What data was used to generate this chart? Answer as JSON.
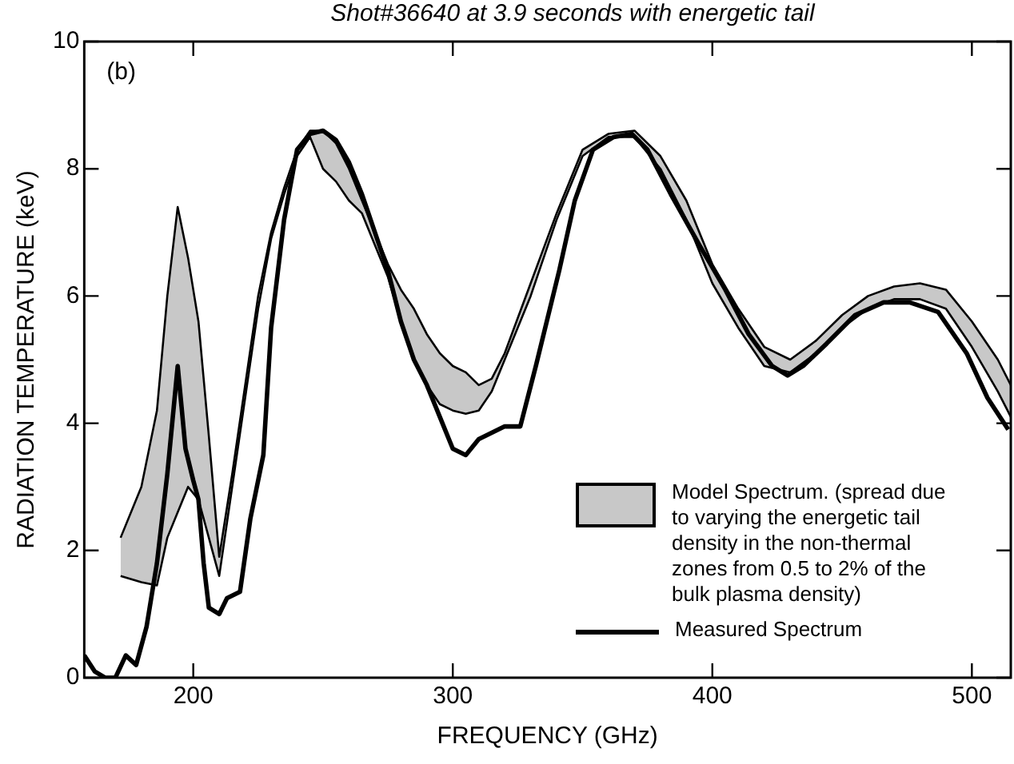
{
  "chart_data": {
    "type": "line",
    "title": "Shot#36640 at 3.9 seconds with energetic tail",
    "xlabel": "FREQUENCY (GHz)",
    "ylabel": "RADIATION TEMPERATURE (keV)",
    "annotations": [
      "(b)"
    ],
    "xlim": [
      158,
      515
    ],
    "xticks": [
      200,
      300,
      400,
      500
    ],
    "ylim": [
      0,
      10
    ],
    "yticks": [
      0,
      2,
      4,
      6,
      8,
      10
    ],
    "grid": false,
    "legend": "bottom right",
    "marker": "none",
    "line_style": "solid",
    "series": [
      {
        "name": "Model Spectrum. (spread due to varying the energetic tail density in the non-thermal zones from 0.5 to 2% of the bulk plasma density)",
        "color": "#c8c8c8",
        "values": [
          null,
          null,
          null,
          null,
          null,
          null,
          null,
          null,
          null,
          null,
          null,
          null,
          null,
          null,
          null,
          null,
          null,
          null,
          null,
          null,
          null,
          null,
          null,
          null,
          null,
          null,
          null,
          null,
          null,
          null,
          null,
          null,
          null,
          null,
          null,
          null,
          null,
          null,
          null,
          null,
          null,
          null,
          null,
          null,
          null,
          null,
          null,
          null,
          null,
          null,
          null
        ],
        "x": [
          172,
          180,
          186,
          190,
          194,
          198,
          202,
          206,
          210,
          215,
          220,
          225,
          230,
          235,
          240,
          245,
          250,
          255,
          260,
          265,
          270,
          275,
          280,
          285,
          290,
          295,
          300,
          305,
          310,
          315,
          320,
          330,
          340,
          350,
          360,
          370,
          380,
          390,
          400,
          410,
          420,
          430,
          440,
          450,
          460,
          470,
          480,
          490,
          500,
          510,
          515
        ],
        "upper": [
          2.2,
          3.0,
          4.2,
          6.0,
          7.4,
          6.6,
          5.6,
          3.8,
          1.9,
          3.2,
          4.6,
          6.0,
          7.0,
          7.7,
          8.3,
          8.6,
          8.6,
          8.4,
          8.0,
          7.5,
          7.0,
          6.5,
          6.1,
          5.8,
          5.4,
          5.1,
          4.9,
          4.8,
          4.6,
          4.7,
          5.1,
          6.2,
          7.3,
          8.3,
          8.55,
          8.6,
          8.2,
          7.5,
          6.5,
          5.8,
          5.2,
          5.0,
          5.3,
          5.7,
          6.0,
          6.15,
          6.2,
          6.1,
          5.6,
          5.0,
          4.6
        ],
        "lower": [
          1.6,
          1.5,
          1.45,
          2.2,
          2.6,
          3.0,
          2.8,
          2.2,
          1.6,
          3.0,
          4.4,
          5.8,
          6.9,
          7.6,
          8.2,
          8.5,
          8.0,
          7.8,
          7.5,
          7.3,
          6.8,
          6.3,
          5.6,
          5.0,
          4.6,
          4.3,
          4.2,
          4.15,
          4.2,
          4.5,
          5.0,
          6.0,
          7.2,
          8.2,
          8.5,
          8.5,
          8.0,
          7.2,
          6.2,
          5.5,
          4.9,
          4.8,
          5.1,
          5.5,
          5.8,
          5.95,
          5.95,
          5.8,
          5.2,
          4.5,
          4.1
        ]
      },
      {
        "color": "#000000",
        "x": [
          172,
          180,
          186,
          190,
          194,
          198,
          202,
          206,
          210,
          215,
          220,
          225,
          230,
          235,
          240,
          245,
          250,
          255,
          260,
          265,
          270,
          275,
          280,
          285,
          290,
          295,
          300,
          305,
          310,
          315,
          320,
          330,
          340,
          350,
          360,
          370,
          380,
          390,
          400,
          410,
          420,
          430,
          440,
          450,
          460,
          470,
          480,
          490,
          500,
          510,
          515
        ],
        "values": [
          2.2,
          3.0,
          4.2,
          6.0,
          7.4,
          6.6,
          5.6,
          3.8,
          1.9,
          3.2,
          4.6,
          6.0,
          7.0,
          7.7,
          8.3,
          8.6,
          8.6,
          8.4,
          8.0,
          7.5,
          7.0,
          6.5,
          6.1,
          5.8,
          5.4,
          5.1,
          4.9,
          4.8,
          4.6,
          4.7,
          5.1,
          6.2,
          7.3,
          8.3,
          8.55,
          8.6,
          8.2,
          7.5,
          6.5,
          5.8,
          5.2,
          5.0,
          5.3,
          5.7,
          6.0,
          6.15,
          6.2,
          6.1,
          5.6,
          5.0,
          4.6
        ]
      },
      {
        "color": "#000000",
        "x": [
          172,
          180,
          186,
          190,
          194,
          198,
          202,
          206,
          210,
          215,
          220,
          225,
          230,
          235,
          240,
          245,
          250,
          255,
          260,
          265,
          270,
          275,
          280,
          285,
          290,
          295,
          300,
          305,
          310,
          315,
          320,
          330,
          340,
          350,
          360,
          370,
          380,
          390,
          400,
          410,
          420,
          430,
          440,
          450,
          460,
          470,
          480,
          490,
          500,
          510,
          515
        ],
        "values": [
          1.6,
          1.5,
          1.45,
          2.2,
          2.6,
          3.0,
          2.8,
          2.2,
          1.6,
          3.0,
          4.4,
          5.8,
          6.9,
          7.6,
          8.2,
          8.5,
          8.0,
          7.8,
          7.5,
          7.3,
          6.8,
          6.3,
          5.6,
          5.0,
          4.6,
          4.3,
          4.2,
          4.15,
          4.2,
          4.5,
          5.0,
          6.0,
          7.2,
          8.2,
          8.5,
          8.5,
          8.0,
          7.2,
          6.2,
          5.5,
          4.9,
          4.8,
          5.1,
          5.5,
          5.8,
          5.95,
          5.95,
          5.8,
          5.2,
          4.5,
          4.1
        ]
      },
      {
        "name": "Measured Spectrum",
        "color": "#000000",
        "x": [
          158,
          162,
          166,
          170,
          174,
          178,
          182,
          186,
          190,
          194,
          197,
          200,
          202,
          204,
          206,
          210,
          213,
          218,
          222,
          227,
          230,
          235,
          240,
          245,
          250,
          255,
          260,
          265,
          270,
          275,
          280,
          285,
          290,
          295,
          300,
          305,
          310,
          315,
          320,
          326,
          332,
          341,
          347,
          354,
          362,
          369,
          375,
          384,
          395,
          405,
          414,
          423,
          429,
          435,
          444,
          455,
          466,
          476,
          487,
          498,
          506,
          514
        ],
        "values": [
          0.35,
          0.1,
          0,
          0,
          0.35,
          0.2,
          0.8,
          1.8,
          3.2,
          4.9,
          3.6,
          3.1,
          2.8,
          1.8,
          1.1,
          1.0,
          1.25,
          1.35,
          2.5,
          3.5,
          5.5,
          7.2,
          8.3,
          8.55,
          8.6,
          8.45,
          8.1,
          7.6,
          7.0,
          6.4,
          5.6,
          5.0,
          4.6,
          4.1,
          3.6,
          3.5,
          3.75,
          3.85,
          3.95,
          3.95,
          4.9,
          6.4,
          7.5,
          8.3,
          8.5,
          8.55,
          8.3,
          7.6,
          6.8,
          6.1,
          5.4,
          4.9,
          4.75,
          4.9,
          5.25,
          5.7,
          5.9,
          5.9,
          5.75,
          5.1,
          4.4,
          3.9
        ]
      }
    ]
  }
}
